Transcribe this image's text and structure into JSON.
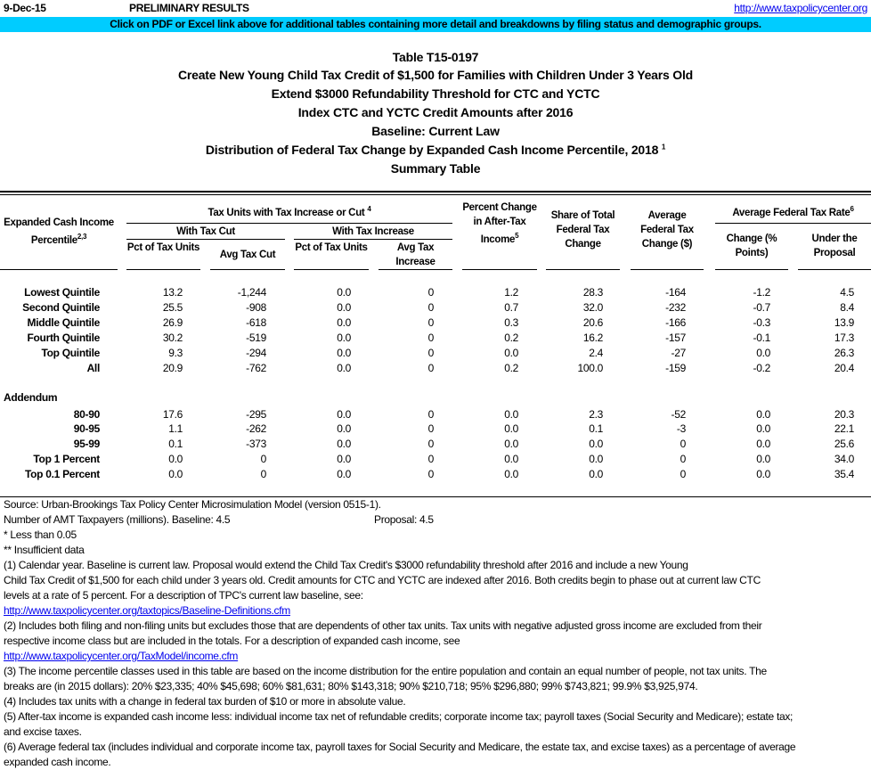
{
  "header": {
    "date": "9-Dec-15",
    "status": "PRELIMINARY RESULTS",
    "site_link": "http://www.taxpolicycenter.org",
    "banner": "Click on PDF or Excel link above for additional tables containing more detail and breakdowns by filing status and demographic groups."
  },
  "titles": [
    "Table T15-0197",
    "Create New Young Child Tax Credit of $1,500 for Families with Children Under 3 Years Old",
    "Extend $3000 Refundability Threshold for CTC and YCTC",
    "Index CTC and YCTC Credit Amounts after 2016",
    "Baseline: Current Law",
    "Distribution of Federal Tax Change by Expanded Cash Income Percentile, 2018",
    "Summary Table"
  ],
  "title_sup": "1",
  "columns": {
    "label": "Expanded Cash Income Percentile",
    "label_sup": "2,3",
    "group1": "Tax Units with Tax Increase or Cut",
    "group1_sup": "4",
    "cut": "With Tax Cut",
    "increase": "With Tax Increase",
    "c1": "Pct of Tax Units",
    "c2": "Avg Tax Cut",
    "c3": "Pct of Tax Units",
    "c4": "Avg Tax Increase",
    "c5": "Percent Change in After-Tax Income",
    "c5_sup": "5",
    "c6": "Share of Total Federal Tax Change",
    "c7": "Average Federal Tax Change ($)",
    "group2": "Average Federal Tax Rate",
    "group2_sup": "6",
    "c8": "Change (% Points)",
    "c9": "Under the Proposal"
  },
  "rows": [
    {
      "label": "Lowest Quintile",
      "values": [
        "13.2",
        "-1,244",
        "0.0",
        "0",
        "1.2",
        "28.3",
        "-164",
        "-1.2",
        "4.5"
      ]
    },
    {
      "label": "Second Quintile",
      "values": [
        "25.5",
        "-908",
        "0.0",
        "0",
        "0.7",
        "32.0",
        "-232",
        "-0.7",
        "8.4"
      ]
    },
    {
      "label": "Middle Quintile",
      "values": [
        "26.9",
        "-618",
        "0.0",
        "0",
        "0.3",
        "20.6",
        "-166",
        "-0.3",
        "13.9"
      ]
    },
    {
      "label": "Fourth Quintile",
      "values": [
        "30.2",
        "-519",
        "0.0",
        "0",
        "0.2",
        "16.2",
        "-157",
        "-0.1",
        "17.3"
      ]
    },
    {
      "label": "Top Quintile",
      "values": [
        "9.3",
        "-294",
        "0.0",
        "0",
        "0.0",
        "2.4",
        "-27",
        "0.0",
        "26.3"
      ]
    },
    {
      "label": "All",
      "values": [
        "20.9",
        "-762",
        "0.0",
        "0",
        "0.2",
        "100.0",
        "-159",
        "-0.2",
        "20.4"
      ]
    }
  ],
  "addendum_label": "Addendum",
  "addendum": [
    {
      "label": "80-90",
      "values": [
        "17.6",
        "-295",
        "0.0",
        "0",
        "0.0",
        "2.3",
        "-52",
        "0.0",
        "20.3"
      ]
    },
    {
      "label": "90-95",
      "values": [
        "1.1",
        "-262",
        "0.0",
        "0",
        "0.0",
        "0.1",
        "-3",
        "0.0",
        "22.1"
      ]
    },
    {
      "label": "95-99",
      "values": [
        "0.1",
        "-373",
        "0.0",
        "0",
        "0.0",
        "0.0",
        "0",
        "0.0",
        "25.6"
      ]
    },
    {
      "label": "Top 1 Percent",
      "values": [
        "0.0",
        "0",
        "0.0",
        "0",
        "0.0",
        "0.0",
        "0",
        "0.0",
        "34.0"
      ]
    },
    {
      "label": "Top 0.1 Percent",
      "values": [
        "0.0",
        "0",
        "0.0",
        "0",
        "0.0",
        "0.0",
        "0",
        "0.0",
        "35.4"
      ]
    }
  ],
  "footnotes": {
    "source": "Source: Urban-Brookings Tax Policy Center Microsimulation Model (version 0515-1).",
    "amt": "Number of AMT Taxpayers (millions).  Baseline: 4.5",
    "amt_proposal": "Proposal: 4.5",
    "less": "* Less than 0.05",
    "insufficient": "** Insufficient data",
    "n1": [
      "(1) Calendar year. Baseline is current law. Proposal would extend the Child Tax Credit's $3000 refundability threshold after 2016 and include a new Young",
      "Child Tax Credit of $1,500 for each child under 3 years old. Credit amounts for CTC and YCTC are indexed after 2016. Both credits begin to phase out at current law CTC",
      "levels at a rate of 5 percent. For a description of TPC's current law baseline, see:"
    ],
    "n1_link": "http://www.taxpolicycenter.org/taxtopics/Baseline-Definitions.cfm",
    "n2": [
      "(2) Includes both filing and non-filing units but excludes those that are dependents of other tax units. Tax units with negative adjusted gross income are excluded from their",
      "respective income class but are included in the totals. For a description of expanded cash income, see"
    ],
    "n2_link": "http://www.taxpolicycenter.org/TaxModel/income.cfm",
    "n3": [
      "(3) The income percentile classes used in this table are based on the income distribution for the entire population and contain an equal number of people, not tax units. The",
      "breaks are (in 2015 dollars): 20% $23,335; 40% $45,698; 60% $81,631; 80% $143,318; 90% $210,718; 95% $296,880; 99% $743,821; 99.9% $3,925,974."
    ],
    "n4": "(4) Includes tax units with a change in federal tax burden of $10 or more in absolute value.",
    "n5": [
      "(5) After-tax income is expanded cash income less: individual income tax net of refundable credits; corporate income tax; payroll taxes (Social Security and Medicare); estate tax;",
      "and excise taxes."
    ],
    "n6": [
      "(6) Average federal tax (includes individual and corporate income tax, payroll taxes for Social Security and Medicare, the estate tax, and excise taxes) as a percentage of average",
      "expanded cash income."
    ]
  },
  "colors": {
    "banner": "#00ccff",
    "link": "#0000ee"
  }
}
